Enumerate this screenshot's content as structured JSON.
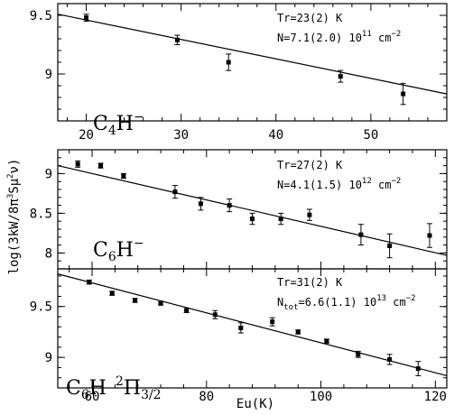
{
  "chart_data": {
    "type": "scatter",
    "ylabel": "log(3kW/8π³Sμ²ν)",
    "xlabel": "Eu(K)",
    "panels": [
      {
        "xlim": [
          17,
          58
        ],
        "ylim": [
          8.6,
          9.6
        ],
        "xticks": [
          20,
          30,
          40,
          50
        ],
        "yticks": [
          9,
          9.5
        ],
        "ytick_labels": [
          "9",
          "9.5"
        ],
        "molecule": "C4H⁻",
        "annotations": [
          "Tr=23(2) K",
          "N=7.1(2.0) 10¹¹ cm⁻²"
        ],
        "fit": {
          "x": [
            17,
            58
          ],
          "y": [
            9.51,
            8.83
          ]
        },
        "points": [
          {
            "x": 20.0,
            "y": 9.48,
            "err": 0.03
          },
          {
            "x": 29.6,
            "y": 9.29,
            "err": 0.04
          },
          {
            "x": 35.0,
            "y": 9.1,
            "err": 0.07
          },
          {
            "x": 46.8,
            "y": 8.98,
            "err": 0.05
          },
          {
            "x": 53.4,
            "y": 8.83,
            "err": 0.09
          }
        ]
      },
      {
        "xlim": [
          54,
          122
        ],
        "ylim": [
          7.8,
          9.3
        ],
        "xticks": [
          60,
          80,
          100,
          120
        ],
        "yticks": [
          8,
          8.5,
          9
        ],
        "ytick_labels": [
          "8",
          "8.5",
          "9"
        ],
        "molecule": "C6H⁻",
        "annotations": [
          "Tr=27(2) K",
          "N=4.1(1.5) 10¹² cm⁻²"
        ],
        "fit": {
          "x": [
            54,
            122
          ],
          "y": [
            9.1,
            7.97
          ]
        },
        "points": [
          {
            "x": 57.5,
            "y": 9.12,
            "err": 0.04
          },
          {
            "x": 61.5,
            "y": 9.1,
            "err": 0.03
          },
          {
            "x": 65.5,
            "y": 8.97,
            "err": 0.03
          },
          {
            "x": 74.5,
            "y": 8.77,
            "err": 0.08
          },
          {
            "x": 79.0,
            "y": 8.62,
            "err": 0.08
          },
          {
            "x": 84.0,
            "y": 8.6,
            "err": 0.08
          },
          {
            "x": 88.0,
            "y": 8.43,
            "err": 0.07
          },
          {
            "x": 93.0,
            "y": 8.43,
            "err": 0.07
          },
          {
            "x": 98.0,
            "y": 8.48,
            "err": 0.07
          },
          {
            "x": 107.0,
            "y": 8.23,
            "err": 0.13
          },
          {
            "x": 112.0,
            "y": 8.09,
            "err": 0.15
          },
          {
            "x": 119.0,
            "y": 8.22,
            "err": 0.15
          }
        ]
      },
      {
        "xlim": [
          54,
          122
        ],
        "ylim": [
          8.7,
          9.87
        ],
        "xticks": [
          60,
          80,
          100,
          120
        ],
        "yticks": [
          9,
          9.5
        ],
        "ytick_labels": [
          "9",
          "9.5"
        ],
        "molecule": "C6H ²Π3/2",
        "annotations": [
          "Tr=31(2) K",
          "Ntot=6.6(1.1) 10¹³ cm⁻²"
        ],
        "fit": {
          "x": [
            54,
            122
          ],
          "y": [
            9.82,
            8.82
          ]
        },
        "points": [
          {
            "x": 59.5,
            "y": 9.74,
            "err": 0.02
          },
          {
            "x": 63.5,
            "y": 9.63,
            "err": 0.02
          },
          {
            "x": 67.5,
            "y": 9.56,
            "err": 0.02
          },
          {
            "x": 72.0,
            "y": 9.53,
            "err": 0.015
          },
          {
            "x": 76.5,
            "y": 9.46,
            "err": 0.02
          },
          {
            "x": 81.5,
            "y": 9.42,
            "err": 0.04
          },
          {
            "x": 86.0,
            "y": 9.29,
            "err": 0.05
          },
          {
            "x": 91.5,
            "y": 9.35,
            "err": 0.04
          },
          {
            "x": 96.0,
            "y": 9.25,
            "err": 0.02
          },
          {
            "x": 101.0,
            "y": 9.16,
            "err": 0.02
          },
          {
            "x": 106.5,
            "y": 9.03,
            "err": 0.03
          },
          {
            "x": 112.0,
            "y": 8.98,
            "err": 0.05
          },
          {
            "x": 117.0,
            "y": 8.89,
            "err": 0.07
          }
        ]
      }
    ]
  }
}
